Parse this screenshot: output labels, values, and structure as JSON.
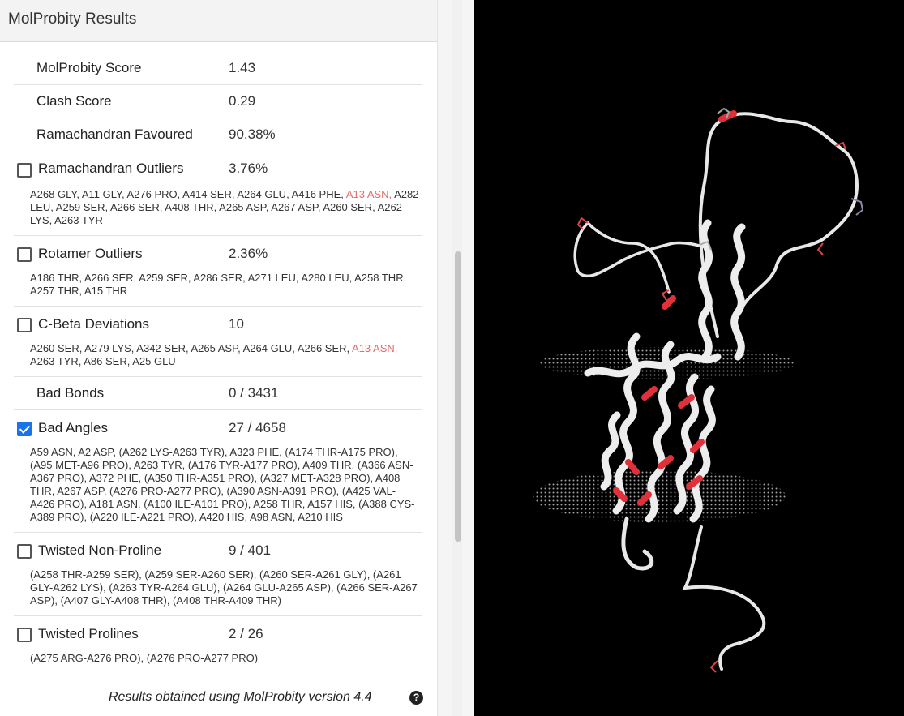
{
  "panel": {
    "title": "MolProbity Results"
  },
  "rows": [
    {
      "label": "MolProbity Score",
      "value": "1.43",
      "checkbox": false
    },
    {
      "label": "Clash Score",
      "value": "0.29",
      "checkbox": false
    },
    {
      "label": "Ramachandran Favoured",
      "value": "90.38%",
      "checkbox": false
    },
    {
      "label": "Ramachandran Outliers",
      "value": "3.76%",
      "checkbox": true,
      "checked": false,
      "details_pre": "A268 GLY, A11 GLY, A276 PRO, A414 SER, A264 GLU, A416 PHE, ",
      "details_flag": "A13 ASN,",
      "details_post": " A282 LEU, A259 SER, A266 SER, A408 THR, A265 ASP, A267 ASP, A260 SER, A262 LYS, A263 TYR"
    },
    {
      "label": "Rotamer Outliers",
      "value": "2.36%",
      "checkbox": true,
      "checked": false,
      "details": "A186 THR, A266 SER, A259 SER, A286 SER, A271 LEU, A280 LEU, A258 THR, A257 THR, A15 THR"
    },
    {
      "label": "C-Beta Deviations",
      "value": "10",
      "checkbox": true,
      "checked": false,
      "details_pre": "A260 SER, A279 LYS, A342 SER, A265 ASP, A264 GLU, A266 SER, ",
      "details_flag": "A13 ASN,",
      "details_post": " A263 TYR, A86 SER, A25 GLU"
    },
    {
      "label": "Bad Bonds",
      "value": "0 / 3431",
      "checkbox": false
    },
    {
      "label": "Bad Angles",
      "value": "27 / 4658",
      "checkbox": true,
      "checked": true,
      "details": "A59 ASN, A2 ASP, (A262 LYS-A263 TYR), A323 PHE, (A174 THR-A175 PRO), (A95 MET-A96 PRO), A263 TYR, (A176 TYR-A177 PRO), A409 THR, (A366 ASN-A367 PRO), A372 PHE, (A350 THR-A351 PRO), (A327 MET-A328 PRO), A408 THR, A267 ASP, (A276 PRO-A277 PRO), (A390 ASN-A391 PRO), (A425 VAL-A426 PRO), A181 ASN, (A100 ILE-A101 PRO), A258 THR, A157 HIS, (A388 CYS-A389 PRO), (A220 ILE-A221 PRO), A420 HIS, A98 ASN, A210 HIS"
    },
    {
      "label": "Twisted Non-Proline",
      "value": "9 / 401",
      "checkbox": true,
      "checked": false,
      "details": "(A258 THR-A259 SER), (A259 SER-A260 SER), (A260 SER-A261 GLY), (A261 GLY-A262 LYS), (A263 TYR-A264 GLU), (A264 GLU-A265 ASP), (A266 SER-A267 ASP), (A407 GLY-A408 THR), (A408 THR-A409 THR)"
    },
    {
      "label": "Twisted Prolines",
      "value": "2 / 26",
      "checkbox": true,
      "checked": false,
      "details": "(A275 ARG-A276 PRO), (A276 PRO-A277 PRO)"
    }
  ],
  "footer": {
    "text": "Results obtained using MolProbity version 4.4",
    "help_icon_glyph": "?"
  },
  "viewer": {
    "icon": "protein-structure-3d",
    "background_color": "#000000",
    "ribbon_color": "#eeeeee",
    "highlight_color": "#e0303a"
  }
}
